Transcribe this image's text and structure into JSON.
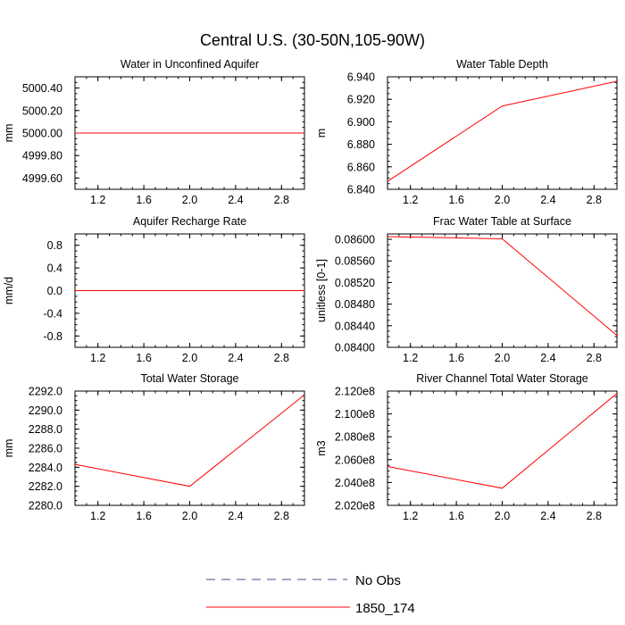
{
  "figure": {
    "title": "Central U.S. (30-50N,105-90W)",
    "legend": [
      {
        "label": "No Obs",
        "color": "#4b4b8f",
        "style": "dashed"
      },
      {
        "label": "1850_174",
        "color": "#ff0000",
        "style": "solid"
      }
    ]
  },
  "chart_data": [
    {
      "type": "line",
      "title": "Water in Unconfined Aquifer",
      "ylabel": "mm",
      "xlim": [
        1.0,
        3.0
      ],
      "ylim": [
        4999.5,
        5000.5
      ],
      "xticks": [
        1.2,
        1.6,
        2.0,
        2.4,
        2.8
      ],
      "xtick_labels": [
        "1.2",
        "1.6",
        "2.0",
        "2.4",
        "2.8"
      ],
      "yticks": [
        4999.6,
        4999.8,
        5000.0,
        5000.2,
        5000.4
      ],
      "ytick_labels": [
        "4999.60",
        "4999.80",
        "5000.00",
        "5000.20",
        "5000.40"
      ],
      "series": [
        {
          "name": "1850_174",
          "color": "#ff0000",
          "x": [
            1,
            2,
            3
          ],
          "y": [
            5000.0,
            5000.0,
            5000.0
          ]
        }
      ]
    },
    {
      "type": "line",
      "title": "Water Table Depth",
      "ylabel": "m",
      "xlim": [
        1.0,
        3.0
      ],
      "ylim": [
        6.84,
        6.94
      ],
      "xticks": [
        1.2,
        1.6,
        2.0,
        2.4,
        2.8
      ],
      "xtick_labels": [
        "1.2",
        "1.6",
        "2.0",
        "2.4",
        "2.8"
      ],
      "yticks": [
        6.84,
        6.86,
        6.88,
        6.9,
        6.92,
        6.94
      ],
      "ytick_labels": [
        "6.840",
        "6.860",
        "6.880",
        "6.900",
        "6.920",
        "6.940"
      ],
      "series": [
        {
          "name": "1850_174",
          "color": "#ff0000",
          "x": [
            1,
            2,
            3
          ],
          "y": [
            6.847,
            6.914,
            6.936
          ]
        }
      ]
    },
    {
      "type": "line",
      "title": "Aquifer Recharge Rate",
      "ylabel": "mm/d",
      "xlim": [
        1.0,
        3.0
      ],
      "ylim": [
        -1.0,
        1.0
      ],
      "xticks": [
        1.2,
        1.6,
        2.0,
        2.4,
        2.8
      ],
      "xtick_labels": [
        "1.2",
        "1.6",
        "2.0",
        "2.4",
        "2.8"
      ],
      "yticks": [
        -0.8,
        -0.4,
        0.0,
        0.4,
        0.8
      ],
      "ytick_labels": [
        "-0.8",
        "-0.4",
        "0.0",
        "0.4",
        "0.8"
      ],
      "series": [
        {
          "name": "1850_174",
          "color": "#ff0000",
          "x": [
            1,
            2,
            3
          ],
          "y": [
            0.0,
            0.0,
            0.0
          ]
        }
      ]
    },
    {
      "type": "line",
      "title": "Frac Water Table at Surface",
      "ylabel": "unitless [0-1]",
      "xlim": [
        1.0,
        3.0
      ],
      "ylim": [
        0.084,
        0.0861
      ],
      "xticks": [
        1.2,
        1.6,
        2.0,
        2.4,
        2.8
      ],
      "xtick_labels": [
        "1.2",
        "1.6",
        "2.0",
        "2.4",
        "2.8"
      ],
      "yticks": [
        0.084,
        0.0844,
        0.0848,
        0.0852,
        0.0856,
        0.086
      ],
      "ytick_labels": [
        "0.08400",
        "0.08440",
        "0.08480",
        "0.08520",
        "0.08560",
        "0.08600"
      ],
      "series": [
        {
          "name": "1850_174",
          "color": "#ff0000",
          "x": [
            1,
            2,
            3
          ],
          "y": [
            0.08605,
            0.08601,
            0.08422
          ]
        }
      ]
    },
    {
      "type": "line",
      "title": "Total Water Storage",
      "ylabel": "mm",
      "xlim": [
        1.0,
        3.0
      ],
      "ylim": [
        2280.0,
        2292.0
      ],
      "xticks": [
        1.2,
        1.6,
        2.0,
        2.4,
        2.8
      ],
      "xtick_labels": [
        "1.2",
        "1.6",
        "2.0",
        "2.4",
        "2.8"
      ],
      "yticks": [
        2280,
        2282,
        2284,
        2286,
        2288,
        2290,
        2292
      ],
      "ytick_labels": [
        "2280.0",
        "2282.0",
        "2284.0",
        "2286.0",
        "2288.0",
        "2290.0",
        "2292.0"
      ],
      "series": [
        {
          "name": "1850_174",
          "color": "#ff0000",
          "x": [
            1,
            2,
            3
          ],
          "y": [
            2284.3,
            2282.0,
            2291.6
          ]
        }
      ]
    },
    {
      "type": "line",
      "title": "River Channel Total Water Storage",
      "ylabel": "m3",
      "xlim": [
        1.0,
        3.0
      ],
      "ylim": [
        202000000,
        212000000
      ],
      "xticks": [
        1.2,
        1.6,
        2.0,
        2.4,
        2.8
      ],
      "xtick_labels": [
        "1.2",
        "1.6",
        "2.0",
        "2.4",
        "2.8"
      ],
      "yticks": [
        202000000,
        204000000,
        206000000,
        208000000,
        210000000,
        212000000
      ],
      "ytick_labels": [
        "2.020e8",
        "2.040e8",
        "2.060e8",
        "2.080e8",
        "2.100e8",
        "2.120e8"
      ],
      "series": [
        {
          "name": "1850_174",
          "color": "#ff0000",
          "x": [
            1,
            2,
            3
          ],
          "y": [
            205400000,
            203500000,
            211800000
          ]
        }
      ]
    }
  ]
}
